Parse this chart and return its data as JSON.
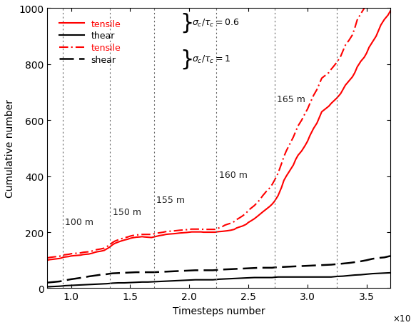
{
  "xlim": [
    0.8,
    3.7
  ],
  "ylim": [
    0,
    1000
  ],
  "xlabel": "Timesteps number",
  "ylabel": "Cumulative number",
  "xticks": [
    1.0,
    1.5,
    2.0,
    2.5,
    3.0,
    3.5
  ],
  "yticks": [
    0,
    200,
    400,
    600,
    800,
    1000
  ],
  "vlines": [
    0.93,
    1.33,
    1.7,
    2.23,
    2.72,
    3.25
  ],
  "background_color": "#ffffff",
  "vline_label_config": [
    [
      0.93,
      220,
      "100 m"
    ],
    [
      1.33,
      255,
      "150 m"
    ],
    [
      1.7,
      300,
      "155 m"
    ],
    [
      2.23,
      390,
      "160 m"
    ],
    [
      2.72,
      660,
      "165 m"
    ]
  ],
  "series": {
    "tensile_solid": {
      "x": [
        0.8,
        0.82,
        0.84,
        0.86,
        0.88,
        0.9,
        0.91,
        0.92,
        0.93,
        0.94,
        0.96,
        0.98,
        1.0,
        1.02,
        1.05,
        1.08,
        1.1,
        1.12,
        1.15,
        1.18,
        1.2,
        1.22,
        1.25,
        1.28,
        1.3,
        1.32,
        1.33,
        1.35,
        1.37,
        1.4,
        1.42,
        1.45,
        1.48,
        1.5,
        1.52,
        1.55,
        1.58,
        1.6,
        1.62,
        1.65,
        1.68,
        1.7,
        1.72,
        1.75,
        1.78,
        1.8,
        1.82,
        1.85,
        1.88,
        1.9,
        1.92,
        1.95,
        1.98,
        2.0,
        2.02,
        2.05,
        2.08,
        2.1,
        2.12,
        2.15,
        2.18,
        2.2,
        2.22,
        2.23,
        2.25,
        2.28,
        2.3,
        2.32,
        2.35,
        2.38,
        2.4,
        2.42,
        2.45,
        2.48,
        2.5,
        2.52,
        2.55,
        2.58,
        2.6,
        2.62,
        2.65,
        2.68,
        2.7,
        2.72,
        2.75,
        2.78,
        2.8,
        2.82,
        2.85,
        2.88,
        2.9,
        2.92,
        2.95,
        2.98,
        3.0,
        3.02,
        3.05,
        3.08,
        3.1,
        3.12,
        3.15,
        3.18,
        3.2,
        3.22,
        3.25,
        3.28,
        3.3,
        3.32,
        3.35,
        3.38,
        3.4,
        3.42,
        3.45,
        3.48,
        3.5,
        3.52,
        3.55,
        3.58,
        3.6,
        3.62,
        3.65,
        3.68,
        3.7
      ],
      "y": [
        100,
        102,
        103,
        104,
        105,
        106,
        107,
        108,
        110,
        111,
        112,
        113,
        115,
        116,
        117,
        118,
        120,
        121,
        122,
        125,
        128,
        130,
        132,
        135,
        140,
        145,
        148,
        155,
        160,
        165,
        168,
        172,
        175,
        178,
        180,
        182,
        183,
        184,
        183,
        182,
        181,
        183,
        185,
        188,
        190,
        192,
        193,
        194,
        195,
        196,
        197,
        198,
        199,
        200,
        201,
        201,
        201,
        201,
        200,
        200,
        200,
        200,
        200,
        201,
        202,
        203,
        204,
        205,
        207,
        210,
        215,
        218,
        222,
        228,
        235,
        240,
        248,
        258,
        265,
        272,
        282,
        292,
        300,
        310,
        330,
        360,
        385,
        400,
        420,
        440,
        460,
        475,
        490,
        510,
        525,
        545,
        570,
        590,
        610,
        630,
        640,
        650,
        660,
        668,
        680,
        695,
        710,
        725,
        740,
        755,
        770,
        790,
        810,
        825,
        840,
        860,
        880,
        900,
        920,
        940,
        960,
        975,
        990
      ]
    },
    "shear_solid": {
      "x": [
        0.8,
        0.85,
        0.9,
        0.93,
        0.95,
        1.0,
        1.05,
        1.1,
        1.15,
        1.2,
        1.25,
        1.3,
        1.33,
        1.35,
        1.4,
        1.45,
        1.5,
        1.55,
        1.6,
        1.65,
        1.7,
        1.75,
        1.8,
        1.85,
        1.9,
        1.95,
        2.0,
        2.05,
        2.1,
        2.15,
        2.2,
        2.23,
        2.25,
        2.3,
        2.35,
        2.4,
        2.45,
        2.5,
        2.55,
        2.6,
        2.65,
        2.7,
        2.72,
        2.75,
        2.8,
        2.85,
        2.9,
        2.95,
        3.0,
        3.05,
        3.1,
        3.15,
        3.2,
        3.25,
        3.3,
        3.35,
        3.4,
        3.45,
        3.5,
        3.55,
        3.6,
        3.65,
        3.7
      ],
      "y": [
        5,
        6,
        7,
        8,
        9,
        10,
        11,
        12,
        13,
        14,
        15,
        16,
        17,
        18,
        19,
        19,
        20,
        21,
        22,
        22,
        23,
        24,
        25,
        26,
        27,
        28,
        29,
        30,
        30,
        30,
        30,
        31,
        32,
        33,
        34,
        35,
        36,
        37,
        38,
        38,
        38,
        38,
        39,
        40,
        40,
        40,
        40,
        40,
        40,
        40,
        40,
        40,
        40,
        42,
        43,
        45,
        47,
        48,
        50,
        52,
        53,
        54,
        55
      ]
    },
    "tensile_dashdot": {
      "x": [
        0.8,
        0.82,
        0.84,
        0.86,
        0.88,
        0.9,
        0.91,
        0.92,
        0.93,
        0.94,
        0.96,
        0.98,
        1.0,
        1.02,
        1.05,
        1.08,
        1.1,
        1.12,
        1.15,
        1.18,
        1.2,
        1.22,
        1.25,
        1.28,
        1.3,
        1.32,
        1.33,
        1.35,
        1.37,
        1.4,
        1.42,
        1.45,
        1.48,
        1.5,
        1.52,
        1.55,
        1.58,
        1.6,
        1.62,
        1.65,
        1.68,
        1.7,
        1.72,
        1.75,
        1.78,
        1.8,
        1.82,
        1.85,
        1.88,
        1.9,
        1.92,
        1.95,
        1.98,
        2.0,
        2.02,
        2.05,
        2.08,
        2.1,
        2.12,
        2.15,
        2.18,
        2.2,
        2.22,
        2.23,
        2.25,
        2.28,
        2.3,
        2.32,
        2.35,
        2.38,
        2.4,
        2.42,
        2.45,
        2.48,
        2.5,
        2.52,
        2.55,
        2.58,
        2.6,
        2.62,
        2.65,
        2.68,
        2.7,
        2.72,
        2.75,
        2.78,
        2.8,
        2.82,
        2.85,
        2.88,
        2.9,
        2.92,
        2.95,
        2.98,
        3.0,
        3.02,
        3.05,
        3.08,
        3.1,
        3.12,
        3.15,
        3.18,
        3.2,
        3.22,
        3.25,
        3.28,
        3.3,
        3.32,
        3.35,
        3.38,
        3.4,
        3.42,
        3.45,
        3.48,
        3.5,
        3.52,
        3.55,
        3.58,
        3.6,
        3.62,
        3.65,
        3.68,
        3.7
      ],
      "y": [
        108,
        110,
        111,
        112,
        113,
        114,
        115,
        116,
        118,
        119,
        120,
        121,
        123,
        124,
        125,
        126,
        128,
        129,
        130,
        133,
        136,
        138,
        140,
        143,
        148,
        153,
        156,
        163,
        168,
        173,
        176,
        180,
        183,
        186,
        188,
        190,
        191,
        192,
        192,
        192,
        192,
        194,
        196,
        198,
        200,
        202,
        203,
        204,
        205,
        206,
        207,
        208,
        209,
        210,
        211,
        211,
        211,
        211,
        210,
        210,
        210,
        210,
        210,
        211,
        215,
        220,
        225,
        228,
        232,
        238,
        245,
        250,
        258,
        268,
        278,
        285,
        295,
        308,
        318,
        330,
        345,
        358,
        370,
        385,
        410,
        445,
        470,
        490,
        515,
        540,
        560,
        580,
        600,
        625,
        640,
        660,
        688,
        710,
        730,
        750,
        760,
        770,
        782,
        792,
        808,
        828,
        848,
        868,
        885,
        905,
        930,
        958,
        980,
        1000,
        1010,
        1015,
        1020,
        1025,
        1030,
        1035,
        1040,
        1043,
        1000
      ]
    },
    "shear_dashed": {
      "x": [
        0.8,
        0.85,
        0.9,
        0.93,
        0.95,
        1.0,
        1.05,
        1.1,
        1.15,
        1.2,
        1.25,
        1.3,
        1.33,
        1.35,
        1.4,
        1.45,
        1.5,
        1.55,
        1.6,
        1.65,
        1.7,
        1.75,
        1.8,
        1.85,
        1.9,
        1.95,
        2.0,
        2.05,
        2.1,
        2.15,
        2.2,
        2.23,
        2.25,
        2.3,
        2.35,
        2.4,
        2.45,
        2.5,
        2.55,
        2.6,
        2.65,
        2.7,
        2.72,
        2.75,
        2.8,
        2.85,
        2.9,
        2.95,
        3.0,
        3.05,
        3.1,
        3.15,
        3.2,
        3.25,
        3.3,
        3.35,
        3.4,
        3.45,
        3.5,
        3.55,
        3.6,
        3.65,
        3.7
      ],
      "y": [
        20,
        22,
        24,
        26,
        28,
        32,
        35,
        38,
        42,
        45,
        48,
        50,
        52,
        53,
        54,
        55,
        56,
        57,
        57,
        57,
        57,
        58,
        59,
        60,
        61,
        62,
        63,
        64,
        64,
        64,
        64,
        65,
        66,
        67,
        68,
        69,
        70,
        71,
        72,
        73,
        73,
        73,
        74,
        75,
        76,
        77,
        78,
        79,
        80,
        81,
        82,
        83,
        84,
        86,
        88,
        90,
        93,
        96,
        100,
        105,
        108,
        110,
        115
      ]
    }
  }
}
